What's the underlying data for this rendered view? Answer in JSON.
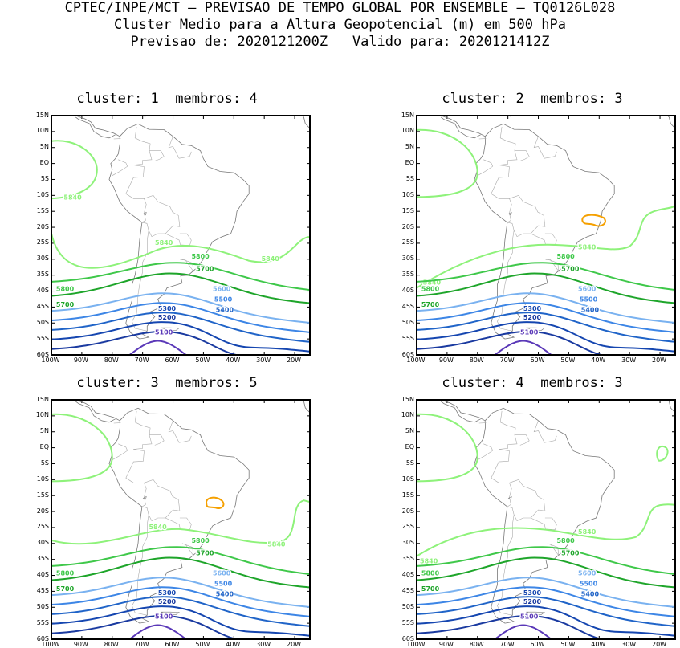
{
  "header": {
    "line1": "CPTEC/INPE/MCT — PREVISAO DE TEMPO GLOBAL POR ENSEMBLE — TQ0126L028",
    "line2": "Cluster Medio para a Altura Geopotencial (m) em 500 hPa",
    "line3": "Previsao de: 2020121200Z   Valido para: 2020121412Z"
  },
  "axes": {
    "lat_ticks": [
      "15N",
      "10N",
      "5N",
      "EQ",
      "5S",
      "10S",
      "15S",
      "20S",
      "25S",
      "30S",
      "35S",
      "40S",
      "45S",
      "50S",
      "55S",
      "60S"
    ],
    "lon_ticks": [
      "100W",
      "90W",
      "80W",
      "70W",
      "60W",
      "50W",
      "40W",
      "30W",
      "20W"
    ]
  },
  "colors": {
    "c5840": "#8ef27a",
    "c5800": "#3fc84a",
    "c5700": "#1ea52a",
    "c5600": "#7ab2f0",
    "c5500": "#3d86e6",
    "c5400": "#2064c8",
    "c5300": "#1546b0",
    "c5200": "#1a3aa0",
    "c5100": "#5a38b8",
    "high": "#f5a000",
    "land": "#999999"
  },
  "chart_data": [
    {
      "type": "contour",
      "title_cluster": "cluster: 1",
      "title_members": "membros: 4",
      "contour_levels": [
        "5840",
        "5800",
        "5700",
        "5600",
        "5500",
        "5400",
        "5300",
        "5200",
        "5100"
      ]
    },
    {
      "type": "contour",
      "title_cluster": "cluster: 2",
      "title_members": "membros: 3",
      "contour_levels": [
        "5840",
        "5800",
        "5700",
        "5600",
        "5500",
        "5400",
        "5300",
        "5200",
        "5100"
      ]
    },
    {
      "type": "contour",
      "title_cluster": "cluster: 3",
      "title_members": "membros: 5",
      "contour_levels": [
        "5840",
        "5800",
        "5700",
        "5600",
        "5500",
        "5400",
        "5300",
        "5200",
        "5100"
      ]
    },
    {
      "type": "contour",
      "title_cluster": "cluster: 4",
      "title_members": "membros: 3",
      "contour_levels": [
        "5840",
        "5800",
        "5700",
        "5600",
        "5500",
        "5400",
        "5300",
        "5200",
        "5100"
      ]
    }
  ]
}
